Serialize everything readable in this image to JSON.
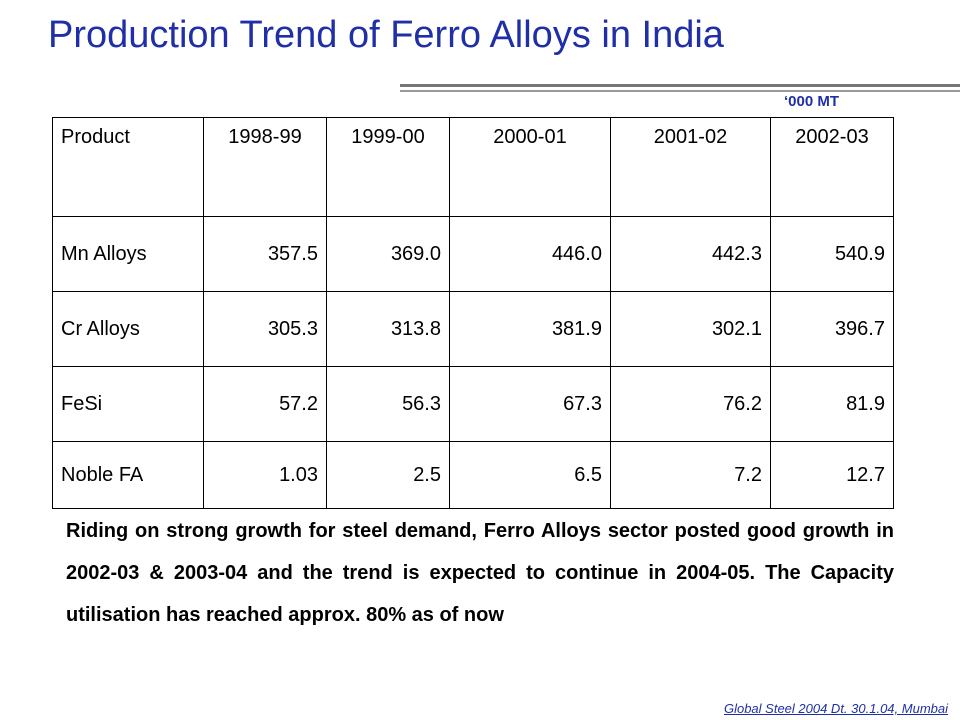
{
  "title": "Production Trend of Ferro Alloys in India",
  "unit": "‘000 MT",
  "table": {
    "headers": [
      "Product",
      "1998-99",
      "1999-00",
      "2000-01",
      "2001-02",
      "2002-03"
    ],
    "rows": [
      [
        "Mn Alloys",
        "357.5",
        "369.0",
        "446.0",
        "442.3",
        "540.9"
      ],
      [
        "Cr Alloys",
        "305.3",
        "313.8",
        "381.9",
        "302.1",
        "396.7"
      ],
      [
        "FeSi",
        "57.2",
        "56.3",
        "67.3",
        "76.2",
        "81.9"
      ],
      [
        "Noble FA",
        "1.03",
        "2.5",
        "6.5",
        "7.2",
        "12.7"
      ]
    ]
  },
  "paragraph": "Riding on strong growth for steel demand, Ferro Alloys sector posted good growth in 2002-03 & 2003-04 and the trend is expected to continue in 2004-05. The Capacity utilisation has reached approx. 80% as of now",
  "footer": "Global Steel 2004 Dt. 30.1.04, Mumbai"
}
